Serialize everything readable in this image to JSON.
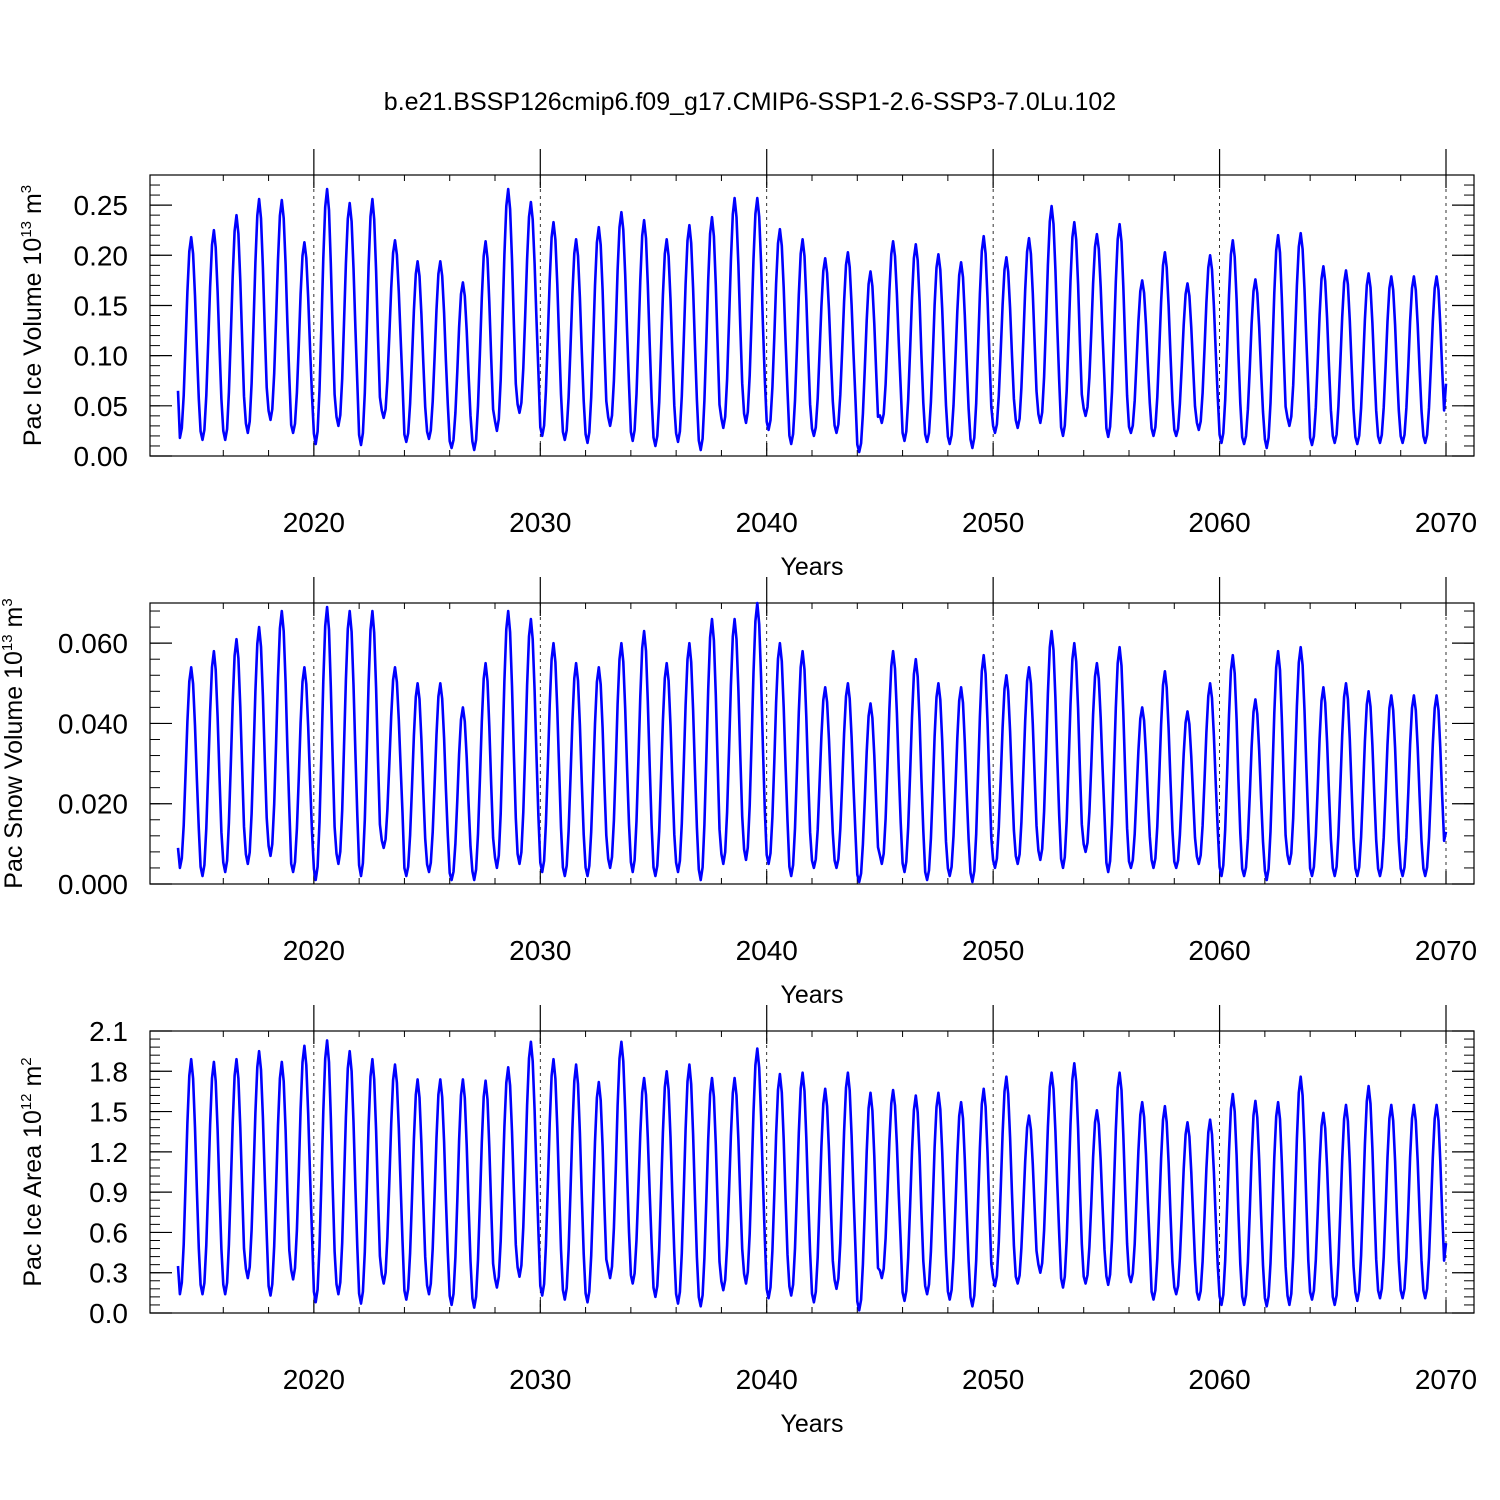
{
  "figure_title": "b.e21.BSSP126cmip6.f09_g17.CMIP6-SSP1-2.6-SSP3-7.0Lu.102",
  "line_color": "#0000ff",
  "chart_data": [
    {
      "type": "line",
      "name": "ice-volume",
      "ylabel_prefix": "Pac Ice Volume 10",
      "ylabel_exp": "13",
      "ylabel_unit": " m",
      "ylabel_unit_exp": "3",
      "xlabel": "Years",
      "xlim": [
        2014,
        2070
      ],
      "ylim": [
        0,
        0.28
      ],
      "xticks": [
        2020,
        2030,
        2040,
        2050,
        2060,
        2070
      ],
      "xtick_labels": [
        "2020",
        "2030",
        "2040",
        "2050",
        "2060",
        "2070"
      ],
      "yticks": [
        0,
        0.05,
        0.1,
        0.15,
        0.2,
        0.25
      ],
      "ytick_labels": [
        "0.00",
        "0.05",
        "0.10",
        "0.15",
        "0.20",
        "0.25"
      ],
      "start_value": 0.065,
      "end_value": 0.072,
      "annual_max": [
        0.218,
        0.225,
        0.24,
        0.256,
        0.255,
        0.213,
        0.266,
        0.252,
        0.256,
        0.215,
        0.194,
        0.194,
        0.173,
        0.214,
        0.266,
        0.253,
        0.233,
        0.216,
        0.228,
        0.243,
        0.235,
        0.216,
        0.23,
        0.238,
        0.257,
        0.257,
        0.226,
        0.216,
        0.197,
        0.203,
        0.184,
        0.214,
        0.211,
        0.201,
        0.193,
        0.219,
        0.198,
        0.217,
        0.249,
        0.233,
        0.221,
        0.231,
        0.175,
        0.203,
        0.172,
        0.2,
        0.215,
        0.176,
        0.22,
        0.222,
        0.189,
        0.185,
        0.182,
        0.179
      ],
      "annual_min": [
        0.018,
        0.016,
        0.016,
        0.023,
        0.036,
        0.023,
        0.012,
        0.03,
        0.011,
        0.038,
        0.014,
        0.017,
        0.008,
        0.006,
        0.025,
        0.043,
        0.02,
        0.016,
        0.013,
        0.03,
        0.015,
        0.01,
        0.014,
        0.006,
        0.028,
        0.033,
        0.026,
        0.012,
        0.02,
        0.023,
        0.004,
        0.033,
        0.015,
        0.014,
        0.012,
        0.008,
        0.023,
        0.028,
        0.033,
        0.02,
        0.04,
        0.019,
        0.023,
        0.02,
        0.02,
        0.026,
        0.013,
        0.012,
        0.008,
        0.03,
        0.011,
        0.013,
        0.012,
        0.013
      ]
    },
    {
      "type": "line",
      "name": "snow-volume",
      "ylabel_prefix": "Pac Snow Volume 10",
      "ylabel_exp": "13",
      "ylabel_unit": " m",
      "ylabel_unit_exp": "3",
      "xlabel": "Years",
      "xlim": [
        2014,
        2070
      ],
      "ylim": [
        0,
        0.07
      ],
      "xticks": [
        2020,
        2030,
        2040,
        2050,
        2060,
        2070
      ],
      "xtick_labels": [
        "2020",
        "2030",
        "2040",
        "2050",
        "2060",
        "2070"
      ],
      "yticks": [
        0,
        0.02,
        0.04,
        0.06
      ],
      "ytick_labels": [
        "0.000",
        "0.020",
        "0.040",
        "0.060"
      ],
      "start_value": 0.009,
      "end_value": 0.013,
      "annual_max": [
        0.054,
        0.058,
        0.061,
        0.064,
        0.068,
        0.054,
        0.069,
        0.068,
        0.068,
        0.054,
        0.05,
        0.05,
        0.044,
        0.055,
        0.068,
        0.066,
        0.06,
        0.055,
        0.054,
        0.06,
        0.063,
        0.055,
        0.06,
        0.066,
        0.066,
        0.07,
        0.06,
        0.058,
        0.049,
        0.05,
        0.045,
        0.058,
        0.056,
        0.05,
        0.049,
        0.057,
        0.052,
        0.054,
        0.063,
        0.06,
        0.055,
        0.059,
        0.044,
        0.053,
        0.043,
        0.05,
        0.057,
        0.046,
        0.058,
        0.059,
        0.049,
        0.05,
        0.048,
        0.047
      ],
      "annual_min": [
        0.004,
        0.002,
        0.003,
        0.005,
        0.007,
        0.003,
        0.001,
        0.005,
        0.002,
        0.009,
        0.002,
        0.003,
        0.001,
        0.001,
        0.004,
        0.005,
        0.003,
        0.002,
        0.002,
        0.004,
        0.003,
        0.002,
        0.003,
        0.001,
        0.005,
        0.006,
        0.005,
        0.002,
        0.004,
        0.004,
        0.0005,
        0.005,
        0.003,
        0.001,
        0.002,
        0.0005,
        0.004,
        0.005,
        0.006,
        0.004,
        0.008,
        0.003,
        0.004,
        0.004,
        0.004,
        0.005,
        0.002,
        0.002,
        0.001,
        0.005,
        0.002,
        0.002,
        0.002,
        0.002
      ]
    },
    {
      "type": "line",
      "name": "ice-area",
      "ylabel_prefix": "Pac Ice Area 10",
      "ylabel_exp": "12",
      "ylabel_unit": " m",
      "ylabel_unit_exp": "2",
      "xlabel": "Years",
      "xlim": [
        2014,
        2070
      ],
      "ylim": [
        0,
        2.1
      ],
      "xticks": [
        2020,
        2030,
        2040,
        2050,
        2060,
        2070
      ],
      "xtick_labels": [
        "2020",
        "2030",
        "2040",
        "2050",
        "2060",
        "2070"
      ],
      "yticks": [
        0,
        0.3,
        0.6,
        0.9,
        1.2,
        1.5,
        1.8,
        2.1
      ],
      "ytick_labels": [
        "0.0",
        "0.3",
        "0.6",
        "0.9",
        "1.2",
        "1.5",
        "1.8",
        "2.1"
      ],
      "start_value": 0.35,
      "end_value": 0.52,
      "annual_max": [
        1.89,
        1.87,
        1.89,
        1.95,
        1.87,
        1.99,
        2.03,
        1.95,
        1.89,
        1.85,
        1.74,
        1.74,
        1.74,
        1.73,
        1.83,
        2.02,
        1.89,
        1.85,
        1.72,
        2.02,
        1.75,
        1.8,
        1.85,
        1.75,
        1.75,
        1.97,
        1.78,
        1.79,
        1.67,
        1.79,
        1.64,
        1.66,
        1.62,
        1.64,
        1.57,
        1.67,
        1.76,
        1.47,
        1.79,
        1.86,
        1.51,
        1.79,
        1.57,
        1.54,
        1.42,
        1.44,
        1.63,
        1.58,
        1.57,
        1.76,
        1.49,
        1.55,
        1.69,
        1.55
      ],
      "annual_min": [
        0.14,
        0.14,
        0.14,
        0.26,
        0.13,
        0.25,
        0.08,
        0.14,
        0.07,
        0.22,
        0.1,
        0.14,
        0.06,
        0.04,
        0.19,
        0.27,
        0.13,
        0.1,
        0.08,
        0.26,
        0.22,
        0.12,
        0.07,
        0.05,
        0.17,
        0.22,
        0.11,
        0.13,
        0.08,
        0.18,
        0.02,
        0.26,
        0.09,
        0.14,
        0.1,
        0.05,
        0.2,
        0.22,
        0.3,
        0.19,
        0.22,
        0.21,
        0.23,
        0.1,
        0.14,
        0.1,
        0.06,
        0.06,
        0.05,
        0.06,
        0.1,
        0.06,
        0.09,
        0.11
      ]
    }
  ]
}
